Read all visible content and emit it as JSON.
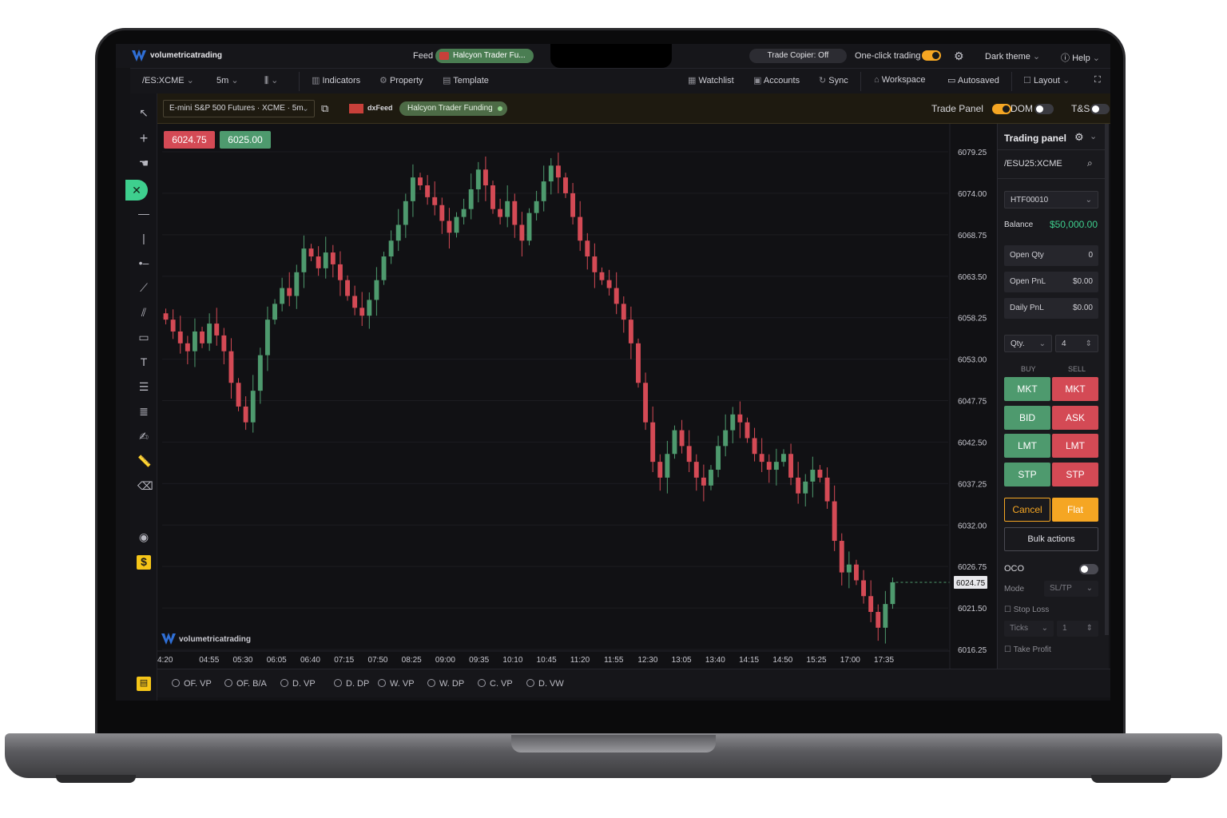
{
  "topbar": {
    "brand": "volumetricatrading",
    "feed_label": "Feed",
    "feed_account": "Halcyon Trader Fu...",
    "trade_copier": "Trade Copier: Off",
    "one_click_label": "One-click trading",
    "one_click_on": true,
    "theme": "Dark theme",
    "help": "Help"
  },
  "toolbar": {
    "symbol": "/ES:XCME",
    "timeframe": "5m",
    "indicators": "Indicators",
    "property": "Property",
    "template": "Template",
    "watchlist": "Watchlist",
    "accounts": "Accounts",
    "sync": "Sync",
    "workspace": "Workspace",
    "autosaved": "Autosaved",
    "layout": "Layout"
  },
  "chart_header": {
    "instrument": "E-mini S&P 500 Futures · XCME · 5m",
    "datafeed": "dxFeed",
    "account": "Halcyon Trader Funding",
    "trade_panel_label": "Trade Panel",
    "trade_panel_on": true,
    "dom_label": "DOM",
    "dom_on": false,
    "ts_label": "T&S",
    "ts_on": false
  },
  "quotes": {
    "bid": "6024.75",
    "ask": "6025.00"
  },
  "watermark": "volumetricatrading",
  "colors": {
    "up": "#4e9a6e",
    "down": "#d44a55",
    "accent": "#f5a623",
    "balance": "#3ecf8e"
  },
  "chart_data": {
    "type": "candlestick",
    "y_ticks": [
      "6079.25",
      "6074.00",
      "6068.75",
      "6063.50",
      "6058.25",
      "6053.00",
      "6047.75",
      "6042.50",
      "6037.25",
      "6032.00",
      "6026.75",
      "6021.50",
      "6016.25"
    ],
    "ylim": [
      6016.25,
      6079.25
    ],
    "x_ticks": [
      "4:20",
      "04:55",
      "05:30",
      "06:05",
      "06:40",
      "07:15",
      "07:50",
      "08:25",
      "09:00",
      "09:35",
      "10:10",
      "10:45",
      "11:20",
      "11:55",
      "12:30",
      "13:05",
      "13:40",
      "14:15",
      "14:50",
      "15:25",
      "17:00",
      "17:35"
    ],
    "last_price": "6024.75",
    "closes": [
      6058.0,
      6056.5,
      6055.0,
      6054.0,
      6056.5,
      6055.0,
      6057.5,
      6056.0,
      6054.0,
      6050.0,
      6047.0,
      6045.0,
      6049.0,
      6053.5,
      6058.0,
      6060.0,
      6062.0,
      6061.0,
      6064.0,
      6067.0,
      6066.0,
      6064.5,
      6066.5,
      6065.0,
      6063.0,
      6061.0,
      6059.5,
      6058.5,
      6060.5,
      6063.0,
      6066.0,
      6068.0,
      6070.0,
      6073.0,
      6076.0,
      6075.0,
      6073.5,
      6072.5,
      6070.5,
      6069.0,
      6071.0,
      6072.0,
      6074.5,
      6077.0,
      6075.0,
      6072.0,
      6071.0,
      6073.0,
      6070.0,
      6068.0,
      6071.5,
      6073.0,
      6075.5,
      6077.5,
      6076.0,
      6074.0,
      6071.0,
      6068.0,
      6066.0,
      6064.0,
      6063.0,
      6062.0,
      6060.0,
      6058.0,
      6055.0,
      6050.0,
      6045.0,
      6040.0,
      6038.0,
      6041.0,
      6044.0,
      6042.0,
      6040.0,
      6038.0,
      6037.0,
      6039.0,
      6042.0,
      6044.0,
      6046.0,
      6045.0,
      6043.0,
      6041.0,
      6040.0,
      6039.0,
      6040.0,
      6041.0,
      6038.0,
      6036.0,
      6037.5,
      6039.0,
      6038.0,
      6035.0,
      6030.0,
      6026.0,
      6027.0,
      6025.0,
      6023.0,
      6021.0,
      6019.0,
      6022.0,
      6024.75
    ]
  },
  "trading_panel": {
    "title": "Trading panel",
    "symbol": "/ESU25:XCME",
    "account": "HTF00010",
    "balance_label": "Balance",
    "balance": "$50,000.00",
    "open_qty_label": "Open Qty",
    "open_qty": "0",
    "open_pnl_label": "Open PnL",
    "open_pnl": "$0.00",
    "daily_pnl_label": "Daily PnL",
    "daily_pnl": "$0.00",
    "qty_label": "Qty.",
    "qty": "4",
    "buy_label": "BUY",
    "sell_label": "SELL",
    "buttons": {
      "mkt": "MKT",
      "bid": "BID",
      "ask": "ASK",
      "lmt": "LMT",
      "stp": "STP"
    },
    "cancel": "Cancel",
    "flat": "Flat",
    "bulk": "Bulk actions",
    "oco_label": "OCO",
    "mode_label": "Mode",
    "mode": "SL/TP",
    "stop_loss": "Stop Loss",
    "ticks_label": "Ticks",
    "ticks": "1",
    "take_profit": "Take Profit"
  },
  "indicators": [
    "OF. VP",
    "OF. B/A",
    "D. VP",
    "D. DP",
    "W. VP",
    "W. DP",
    "C. VP",
    "D. VW"
  ]
}
